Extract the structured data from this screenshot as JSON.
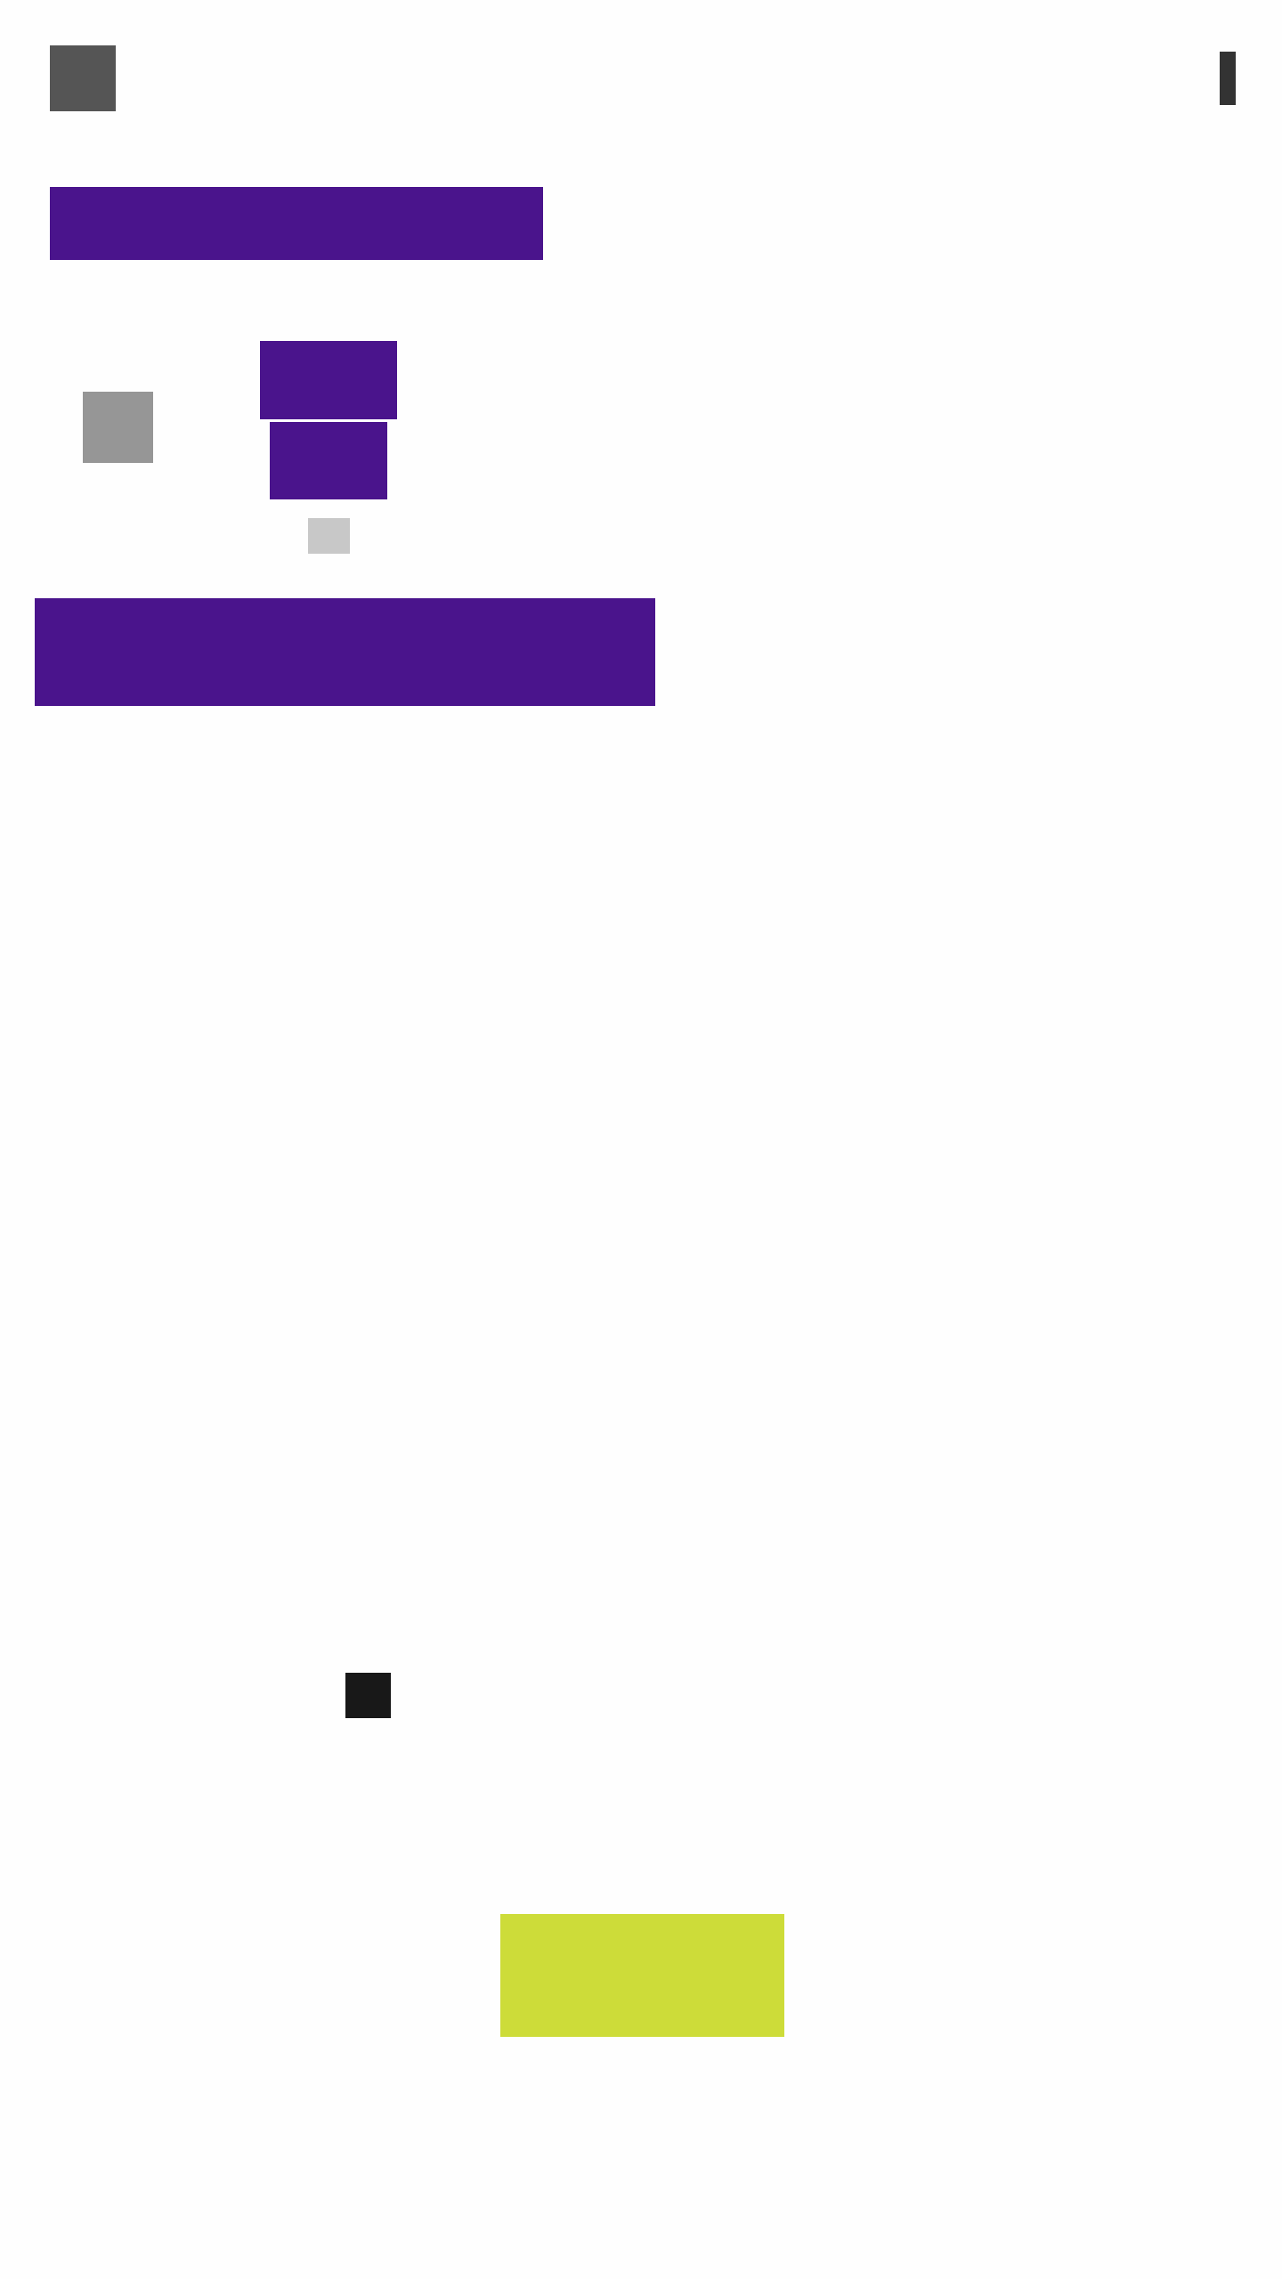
{
  "colors": {
    "background": "#fefefe",
    "primary": "#4a148c",
    "accent": "#cddc39",
    "icon_dark": "#555555",
    "icon_darker": "#333333",
    "placeholder_gray": "#969696",
    "placeholder_light": "#c8c8c8",
    "near_black": "#181818"
  },
  "toolbar": {
    "menu_icon": "menu-icon",
    "overflow_icon": "more-vert-icon"
  },
  "header": {
    "title": ""
  },
  "profile": {
    "avatar_icon": "avatar-placeholder",
    "name": "",
    "subtitle": "",
    "badge": ""
  },
  "banner": {
    "text": ""
  },
  "content": {
    "indicator_icon": "square-icon"
  },
  "action": {
    "label": ""
  }
}
